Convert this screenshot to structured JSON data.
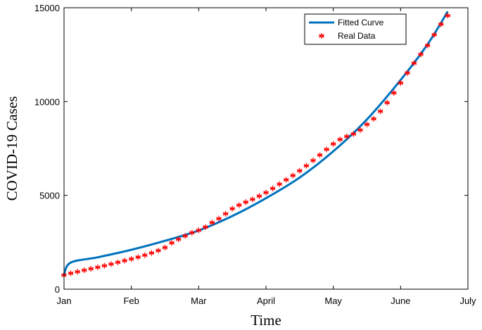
{
  "chart_data": {
    "type": "line",
    "xlabel": "Time",
    "ylabel": "COVID-19 Cases",
    "xlim": [
      0,
      6
    ],
    "ylim": [
      0,
      15000
    ],
    "x_ticks": [
      {
        "value": 0,
        "label": "Jan"
      },
      {
        "value": 1,
        "label": "Feb"
      },
      {
        "value": 2,
        "label": "Mar"
      },
      {
        "value": 3,
        "label": "April"
      },
      {
        "value": 4,
        "label": "May"
      },
      {
        "value": 5,
        "label": "June"
      },
      {
        "value": 6,
        "label": "July"
      }
    ],
    "y_ticks": [
      {
        "value": 0,
        "label": "0"
      },
      {
        "value": 5000,
        "label": "5000"
      },
      {
        "value": 10000,
        "label": "10000"
      },
      {
        "value": 15000,
        "label": "15000"
      }
    ],
    "grid": false,
    "legend_position": "top-right",
    "series": [
      {
        "name": "Fitted Curve",
        "style": "line",
        "color": "#0072BD",
        "x": [
          0,
          0.1,
          0.5,
          1.0,
          1.5,
          2.0,
          2.5,
          3.0,
          3.5,
          4.0,
          4.5,
          5.0,
          5.4,
          5.7
        ],
        "y": [
          800,
          1420,
          1700,
          2100,
          2580,
          3130,
          3900,
          4850,
          5950,
          7350,
          9050,
          11150,
          13050,
          14800
        ]
      },
      {
        "name": "Real Data",
        "style": "markers",
        "marker": "asterisk",
        "color": "#FF0000",
        "x": [
          0.0,
          0.1,
          0.2,
          0.3,
          0.4,
          0.5,
          0.6,
          0.7,
          0.8,
          0.9,
          1.0,
          1.1,
          1.2,
          1.3,
          1.4,
          1.5,
          1.6,
          1.7,
          1.8,
          1.9,
          2.0,
          2.1,
          2.2,
          2.3,
          2.4,
          2.5,
          2.6,
          2.7,
          2.8,
          2.9,
          3.0,
          3.1,
          3.2,
          3.3,
          3.4,
          3.5,
          3.6,
          3.7,
          3.8,
          3.9,
          4.0,
          4.1,
          4.2,
          4.3,
          4.4,
          4.5,
          4.6,
          4.7,
          4.8,
          4.9,
          5.0,
          5.1,
          5.2,
          5.3,
          5.4,
          5.5,
          5.6,
          5.7
        ],
        "y": [
          750,
          850,
          930,
          1010,
          1090,
          1170,
          1250,
          1340,
          1430,
          1520,
          1610,
          1710,
          1810,
          1930,
          2060,
          2220,
          2470,
          2660,
          2840,
          3010,
          3140,
          3310,
          3550,
          3760,
          4020,
          4290,
          4480,
          4640,
          4790,
          4960,
          5150,
          5370,
          5600,
          5830,
          6060,
          6310,
          6580,
          6860,
          7150,
          7450,
          7740,
          7980,
          8140,
          8270,
          8480,
          8780,
          9080,
          9480,
          9940,
          10460,
          10990,
          11520,
          12050,
          12520,
          12990,
          13560,
          14120,
          14580
        ]
      }
    ]
  }
}
